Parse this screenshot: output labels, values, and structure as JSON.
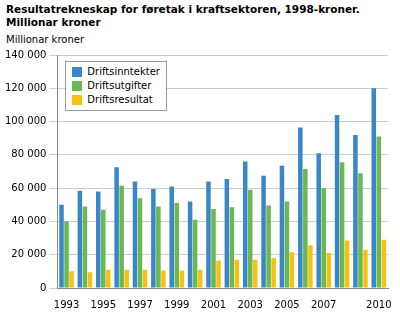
{
  "chart_data": {
    "type": "bar",
    "title": "Resultatrekneskap for føretak i kraftsektoren, 1998-kroner.",
    "subtitle": "Millionar kroner",
    "y_label": "Millionar kroner",
    "categories": [
      "1993",
      null,
      "1995",
      null,
      "1997",
      null,
      "1999",
      null,
      "2001",
      null,
      "2003",
      null,
      "2005",
      null,
      "2007",
      null,
      null,
      "2010"
    ],
    "series": [
      {
        "name": "Driftsinntekter",
        "color": "#3a87c8",
        "values": [
          50000,
          58500,
          58000,
          72500,
          64000,
          59500,
          61000,
          52000,
          64000,
          65500,
          76000,
          67500,
          73500,
          96500,
          81000,
          104000,
          92000,
          120000
        ]
      },
      {
        "name": "Driftsutgifter",
        "color": "#6ab851",
        "values": [
          40000,
          49000,
          47000,
          61500,
          54000,
          49000,
          51000,
          41000,
          47500,
          48500,
          59000,
          49500,
          52000,
          71500,
          60000,
          75500,
          69000,
          91000
        ]
      },
      {
        "name": "Driftsresultat",
        "color": "#f5c211",
        "values": [
          10000,
          9500,
          11000,
          11000,
          11000,
          10500,
          10500,
          11000,
          16500,
          17000,
          17000,
          18000,
          21500,
          25500,
          21000,
          28500,
          23000,
          29000
        ]
      }
    ],
    "ylim": [
      0,
      140000
    ],
    "yticks": [
      0,
      {
        "value": 20000,
        "label": "20 000"
      },
      {
        "value": 40000,
        "label": "40 000"
      },
      {
        "value": 60000,
        "label": "60 000"
      },
      {
        "value": 80000,
        "label": "80 000"
      },
      {
        "value": 100000,
        "label": "100 000"
      },
      {
        "value": 120000,
        "label": "120 000"
      },
      {
        "value": 140000,
        "label": "140 000"
      }
    ],
    "grid": true,
    "legend": "upper left"
  }
}
